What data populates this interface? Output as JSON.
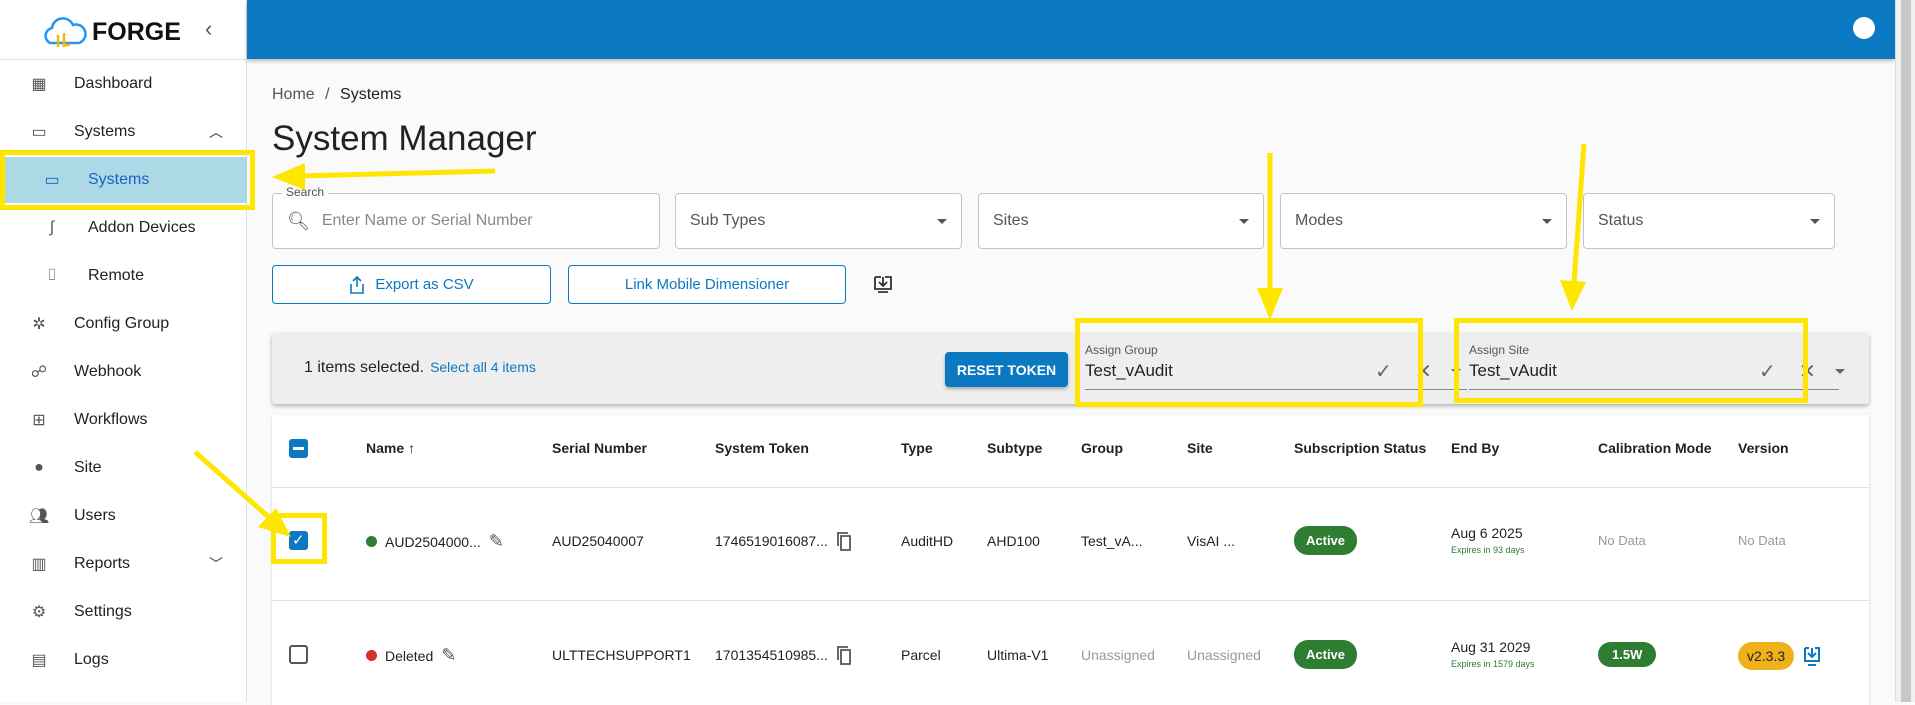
{
  "app": {
    "name": "FORGE"
  },
  "sidebar": {
    "items": [
      {
        "label": "Dashboard",
        "icon": "dashboard-icon"
      },
      {
        "label": "Systems",
        "icon": "devices-icon",
        "expanded": true
      },
      {
        "label": "Systems",
        "icon": "devices-icon",
        "active": true
      },
      {
        "label": "Addon Devices",
        "icon": "cable-icon"
      },
      {
        "label": "Remote",
        "icon": "remote-icon"
      },
      {
        "label": "Config Group",
        "icon": "settings-suggest-icon"
      },
      {
        "label": "Webhook",
        "icon": "webhook-icon"
      },
      {
        "label": "Workflows",
        "icon": "workflow-icon"
      },
      {
        "label": "Site",
        "icon": "location-icon"
      },
      {
        "label": "Users",
        "icon": "users-icon"
      },
      {
        "label": "Reports",
        "icon": "reports-icon"
      },
      {
        "label": "Settings",
        "icon": "gear-icon"
      },
      {
        "label": "Logs",
        "icon": "logs-icon"
      }
    ]
  },
  "breadcrumb": {
    "home": "Home",
    "sep": "/",
    "current": "Systems"
  },
  "page": {
    "title": "System Manager"
  },
  "filters": {
    "search_label": "Search",
    "search_placeholder": "Enter Name or Serial Number",
    "subtypes": "Sub Types",
    "sites": "Sites",
    "modes": "Modes",
    "status": "Status"
  },
  "actions": {
    "export": "Export as CSV",
    "link": "Link Mobile Dimensioner"
  },
  "selection": {
    "text": "1 items selected.",
    "select_all": "Select all 4 items",
    "reset": "RESET TOKEN",
    "assign_group_label": "Assign Group",
    "assign_group_value": "Test_vAudit",
    "assign_site_label": "Assign Site",
    "assign_site_value": "Test_vAudit"
  },
  "table": {
    "headers": [
      "Name",
      "Serial Number",
      "System Token",
      "Type",
      "Subtype",
      "Group",
      "Site",
      "Subscription Status",
      "End By",
      "Calibration Mode",
      "Version"
    ],
    "rows": [
      {
        "checked": true,
        "status_color": "#2e7d32",
        "name": "AUD2504000...",
        "serial": "AUD25040007",
        "token": "1746519016087...",
        "type": "AuditHD",
        "subtype": "AHD100",
        "group": "Test_vA...",
        "site": "VisAI ...",
        "subscription": "Active",
        "end_by": "Aug 6 2025",
        "expires": "Expires in 93 days",
        "calibration": "No Data",
        "version": "No Data"
      },
      {
        "checked": false,
        "status_color": "#d32f2f",
        "name": "Deleted",
        "serial": "ULTTECHSUPPORT1",
        "token": "1701354510985...",
        "type": "Parcel",
        "subtype": "Ultima-V1",
        "group": "Unassigned",
        "site": "Unassigned",
        "subscription": "Active",
        "end_by": "Aug 31 2029",
        "expires": "Expires in 1579 days",
        "calibration": "1.5W",
        "version": "v2.3.3"
      }
    ]
  },
  "colors": {
    "primary": "#0b78c2",
    "active_bg": "#add8e6",
    "highlight": "#ffe600",
    "active_pill": "#2e7d32",
    "version_pill": "#f0b11c"
  }
}
